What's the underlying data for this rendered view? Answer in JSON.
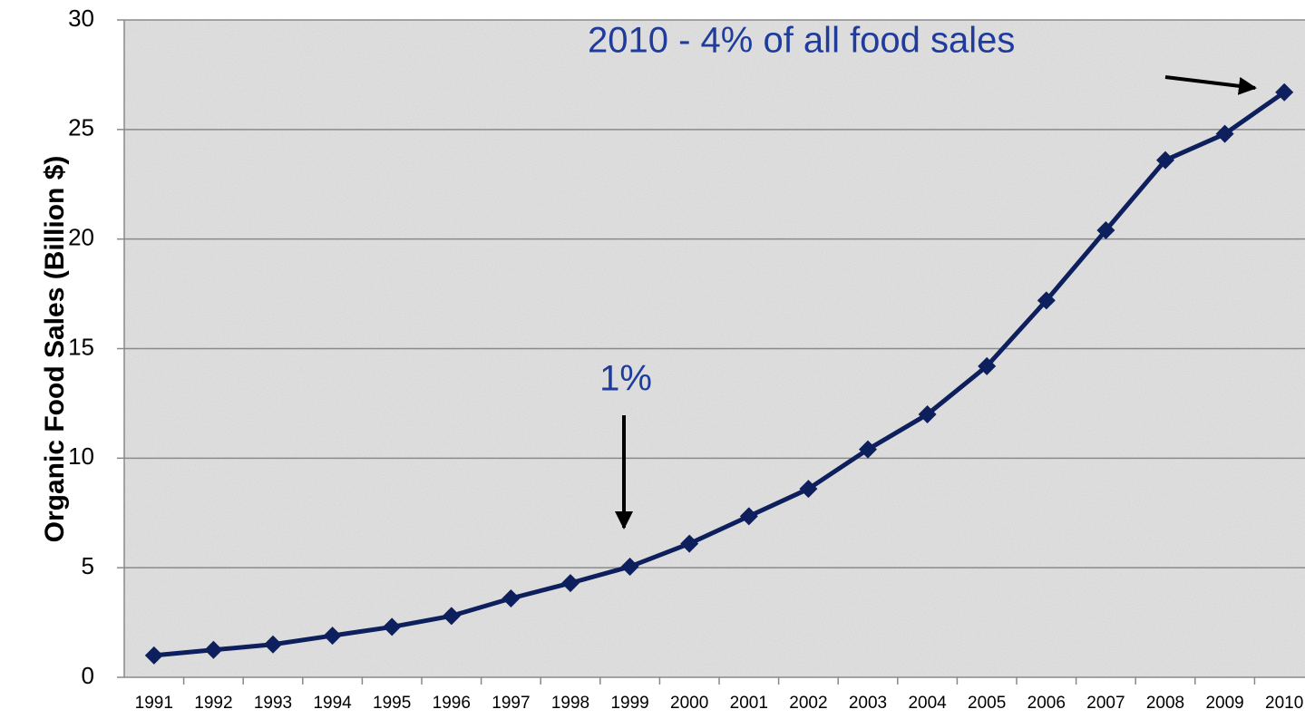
{
  "chart_data": {
    "type": "line",
    "y_label": "Organic Food Sales (Billion $)",
    "categories": [
      "1991",
      "1992",
      "1993",
      "1994",
      "1995",
      "1996",
      "1997",
      "1998",
      "1999",
      "2000",
      "2001",
      "2002",
      "2003",
      "2004",
      "2005",
      "2006",
      "2007",
      "2008",
      "2009",
      "2010"
    ],
    "series": [
      {
        "name": "Organic Food Sales",
        "color": "#0d1f5c",
        "values": [
          1.0,
          1.25,
          1.5,
          1.9,
          2.3,
          2.8,
          3.6,
          4.3,
          5.05,
          6.1,
          7.35,
          8.6,
          10.4,
          12.0,
          14.2,
          17.2,
          20.4,
          23.6,
          24.8,
          26.7
        ]
      }
    ],
    "annotations": [
      "2010 - 4% of all food sales",
      "1%"
    ],
    "ylim": [
      0,
      30
    ],
    "yticks": [
      0,
      5,
      10,
      15,
      20,
      25,
      30
    ],
    "grid": true
  }
}
